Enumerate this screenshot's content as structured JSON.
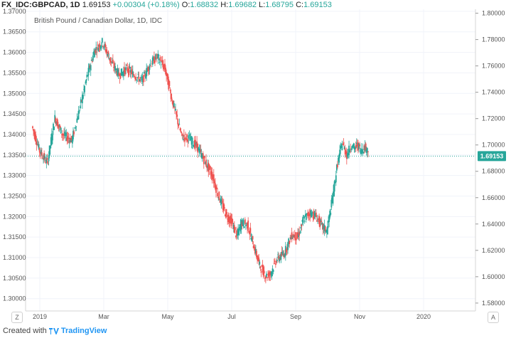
{
  "header": {
    "symbol": "FX_IDC:GBPCAD, 1D",
    "last": "1.69153",
    "change": "+0.00304 (+0.18%)",
    "o_label": "O:",
    "o_value": "1.68832",
    "h_label": "H:",
    "h_value": "1.69682",
    "l_label": "L:",
    "l_value": "1.68795",
    "c_label": "C:",
    "c_value": "1.69153"
  },
  "footer": {
    "created_with": "Created with",
    "brand": "TradingView"
  },
  "buttons": {
    "z_label": "Z",
    "a_label": "A"
  },
  "colors": {
    "up": "#26a69a",
    "down": "#ef5350",
    "grid": "#f0f3fa",
    "axis": "#d6d6d6",
    "price_tag": "#26a69a"
  },
  "chart_data": {
    "type": "candlestick",
    "title": "British Pound / Canadian Dollar, 1D, IDC",
    "xlabel": "",
    "ylabel": "",
    "grid": true,
    "x_ticks": [
      "2019",
      "Mar",
      "May",
      "Jul",
      "Sep",
      "Nov",
      "2020"
    ],
    "left_axis": {
      "ylim": [
        1.297,
        1.3705
      ],
      "ticks": [
        "1.37000",
        "1.36500",
        "1.36000",
        "1.35500",
        "1.35000",
        "1.34500",
        "1.34000",
        "1.33500",
        "1.33000",
        "1.32500",
        "1.32000",
        "1.31500",
        "1.31000",
        "1.30500",
        "1.30000"
      ]
    },
    "right_axis": {
      "ylim": [
        1.574,
        1.803
      ],
      "ticks": [
        "1.80000",
        "1.78000",
        "1.76000",
        "1.74000",
        "1.72000",
        "1.70000",
        "1.68000",
        "1.66000",
        "1.64000",
        "1.62000",
        "1.60000",
        "1.58000"
      ],
      "last_price": "1.69153",
      "last_value": 1.69153
    },
    "series_path": [
      [
        0,
        1.342
      ],
      [
        10,
        1.336
      ],
      [
        20,
        1.333
      ],
      [
        30,
        1.344
      ],
      [
        40,
        1.34
      ],
      [
        52,
        1.3385
      ],
      [
        62,
        1.346
      ],
      [
        72,
        1.354
      ],
      [
        82,
        1.3605
      ],
      [
        92,
        1.3625
      ],
      [
        104,
        1.3575
      ],
      [
        114,
        1.3545
      ],
      [
        124,
        1.356
      ],
      [
        134,
        1.3545
      ],
      [
        144,
        1.353
      ],
      [
        154,
        1.357
      ],
      [
        164,
        1.359
      ],
      [
        174,
        1.356
      ],
      [
        184,
        1.348
      ],
      [
        196,
        1.3395
      ],
      [
        206,
        1.339
      ],
      [
        216,
        1.337
      ],
      [
        226,
        1.3335
      ],
      [
        236,
        1.33
      ],
      [
        244,
        1.325
      ],
      [
        254,
        1.3205
      ],
      [
        262,
        1.3185
      ],
      [
        268,
        1.315
      ],
      [
        274,
        1.3185
      ],
      [
        282,
        1.318
      ],
      [
        290,
        1.313
      ],
      [
        298,
        1.308
      ],
      [
        306,
        1.3055
      ],
      [
        312,
        1.306
      ],
      [
        320,
        1.3095
      ],
      [
        330,
        1.311
      ],
      [
        340,
        1.3155
      ],
      [
        348,
        1.315
      ],
      [
        356,
        1.3195
      ],
      [
        364,
        1.321
      ],
      [
        372,
        1.32
      ],
      [
        380,
        1.3175
      ],
      [
        386,
        1.3165
      ],
      [
        392,
        1.323
      ],
      [
        400,
        1.333
      ],
      [
        406,
        1.338
      ],
      [
        412,
        1.335
      ],
      [
        418,
        1.3375
      ],
      [
        422,
        1.3365
      ],
      [
        426,
        1.3375
      ],
      [
        431,
        1.336
      ],
      [
        435,
        1.337
      ],
      [
        440,
        1.336
      ]
    ]
  }
}
